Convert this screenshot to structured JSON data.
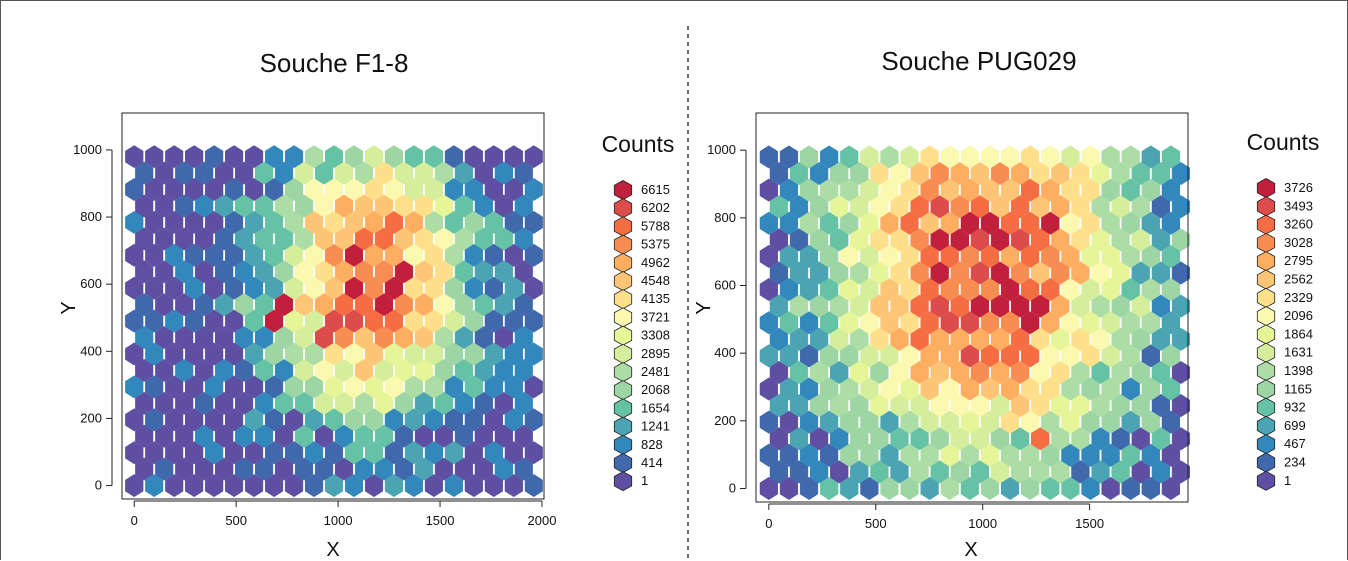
{
  "chart_data": [
    {
      "type": "heatmap",
      "subtype": "hexbin",
      "title": "Souche F1-8",
      "xlabel": "X",
      "ylabel": "Y",
      "xlim": [
        -60,
        2010
      ],
      "ylim": [
        -40,
        1110
      ],
      "xticks": [
        0,
        500,
        1000,
        1500,
        2000
      ],
      "yticks": [
        0,
        200,
        400,
        600,
        800,
        1000
      ],
      "legend_title": "Counts",
      "legend_levels": [
        "6615",
        "6202",
        "5788",
        "5375",
        "4962",
        "4548",
        "4135",
        "3721",
        "3308",
        "2895",
        "2481",
        "2068",
        "1654",
        "1241",
        "828",
        "414",
        "1"
      ],
      "cols": 22,
      "rows": 21,
      "x_step": 98,
      "y_step": 49,
      "odd_row_offset": 49,
      "peak_x": 1150,
      "peak_y": 620,
      "peak_value": 6615,
      "spread_x": 330,
      "spread_y": 280,
      "min_value": 1,
      "hotspots": [
        {
          "x": 720,
          "y": 510,
          "value": 6615
        },
        {
          "x": 950,
          "y": 470,
          "value": 6202
        },
        {
          "x": 1300,
          "y": 610,
          "value": 6615
        }
      ]
    },
    {
      "type": "heatmap",
      "subtype": "hexbin",
      "title": "Souche PUG029",
      "xlabel": "X",
      "ylabel": "Y",
      "xlim": [
        -60,
        1960
      ],
      "ylim": [
        -40,
        1110
      ],
      "xticks": [
        0,
        500,
        1000,
        1500
      ],
      "yticks": [
        0,
        200,
        400,
        600,
        800,
        1000
      ],
      "legend_title": "Counts",
      "legend_levels": [
        "3726",
        "3493",
        "3260",
        "3028",
        "2795",
        "2562",
        "2329",
        "2096",
        "1864",
        "1631",
        "1398",
        "1165",
        "932",
        "699",
        "467",
        "234",
        "1"
      ],
      "cols": 21,
      "rows": 21,
      "x_step": 94,
      "y_step": 49,
      "odd_row_offset": 47,
      "peak_x": 1000,
      "peak_y": 650,
      "peak_value": 3726,
      "spread_x": 520,
      "spread_y": 420,
      "min_value": 1,
      "hotspots": [
        {
          "x": 1060,
          "y": 650,
          "value": 3726
        },
        {
          "x": 1220,
          "y": 510,
          "value": 3726
        },
        {
          "x": 1300,
          "y": 790,
          "value": 3726
        },
        {
          "x": 1300,
          "y": 140,
          "value": 3260
        }
      ]
    }
  ],
  "palette": [
    "#5e4fa2",
    "#3f68ad",
    "#3288bd",
    "#4ba4b1",
    "#66c2a5",
    "#9dd5a4",
    "#abdda4",
    "#d4ee9c",
    "#e6f598",
    "#fbf8b0",
    "#fee08b",
    "#fdc575",
    "#fdae61",
    "#f88d52",
    "#f46d43",
    "#dc4c4a",
    "#c1203d"
  ]
}
